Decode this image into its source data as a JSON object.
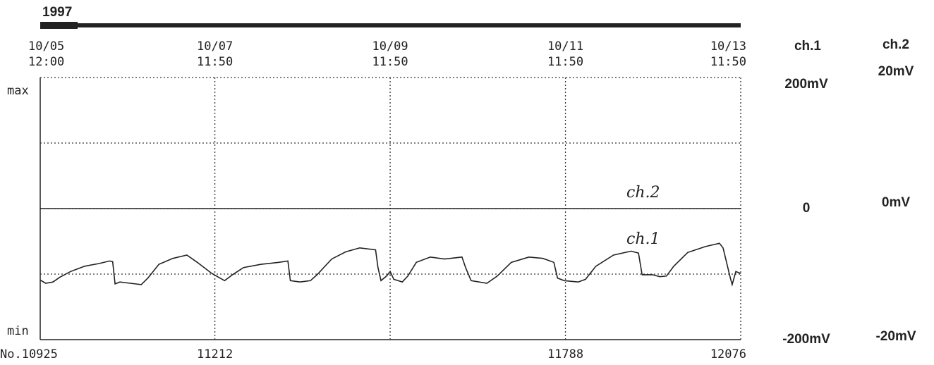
{
  "chart_data": {
    "type": "line",
    "title": "1997",
    "ylabel": "ch.1",
    "y2label": "ch.2",
    "ymax_label": "max",
    "ymin_label": "min",
    "xlim": [
      10925,
      12076
    ],
    "xticks": [
      {
        "value": 10925,
        "label": "No.10925"
      },
      11212,
      {
        "value": 11500,
        "label": null
      },
      11788,
      12076
    ],
    "top_ticks": [
      {
        "date": "10/05",
        "time": "12:00"
      },
      {
        "date": "10/07",
        "time": "11:50"
      },
      {
        "date": "10/09",
        "time": "11:50"
      },
      {
        "date": "10/11",
        "time": "11:50"
      },
      {
        "date": "10/13",
        "time": "11:50"
      }
    ],
    "ylim": [
      -200,
      200
    ],
    "yticks": [
      {
        "value": 200,
        "label": "200mV"
      },
      0,
      {
        "value": -200,
        "label": "-200mV"
      }
    ],
    "minor_yticks": [
      100,
      -100
    ],
    "y2lim": [
      -20,
      20
    ],
    "y2ticks": [
      {
        "value": 20,
        "label": "20mV"
      },
      {
        "value": 0,
        "label": "0mV"
      },
      {
        "value": -20,
        "label": "-20mV"
      }
    ],
    "grid": true,
    "annotations": [
      "ch.2",
      "ch.1"
    ],
    "series": [
      {
        "name": "ch.1",
        "color": "#222222",
        "x": [
          10925,
          10934,
          10946,
          10957,
          10975,
          10998,
          11021,
          11039,
          11044,
          11048,
          11056,
          11073,
          11091,
          11102,
          11120,
          11143,
          11166,
          11183,
          11207,
          11228,
          11241,
          11259,
          11288,
          11317,
          11332,
          11336,
          11352,
          11369,
          11380,
          11404,
          11427,
          11450,
          11476,
          11480,
          11485,
          11494,
          11500,
          11506,
          11520,
          11529,
          11543,
          11566,
          11589,
          11618,
          11624,
          11633,
          11659,
          11676,
          11699,
          11728,
          11751,
          11769,
          11775,
          11786,
          11809,
          11821,
          11838,
          11867,
          11896,
          11908,
          11914,
          11931,
          11943,
          11954,
          11966,
          11989,
          12018,
          12041,
          12047,
          12059,
          12062,
          12068,
          12076
        ],
        "values": [
          -109,
          -114,
          -112,
          -105,
          -96,
          -88,
          -84,
          -80,
          -81,
          -115,
          -112,
          -114,
          -116,
          -106,
          -85,
          -76,
          -71,
          -82,
          -99,
          -110,
          -101,
          -90,
          -85,
          -82,
          -80,
          -110,
          -112,
          -110,
          -101,
          -77,
          -66,
          -60,
          -63,
          -90,
          -110,
          -103,
          -96,
          -108,
          -112,
          -103,
          -82,
          -74,
          -77,
          -74,
          -90,
          -110,
          -114,
          -103,
          -82,
          -74,
          -76,
          -82,
          -106,
          -110,
          -112,
          -108,
          -88,
          -71,
          -65,
          -68,
          -101,
          -101,
          -104,
          -103,
          -88,
          -67,
          -58,
          -53,
          -60,
          -106,
          -116,
          -96,
          -99
        ]
      },
      {
        "name": "ch.2",
        "color": "#222222",
        "axis": "y2",
        "x": [
          10925,
          12076
        ],
        "values": [
          0,
          0
        ]
      }
    ]
  }
}
